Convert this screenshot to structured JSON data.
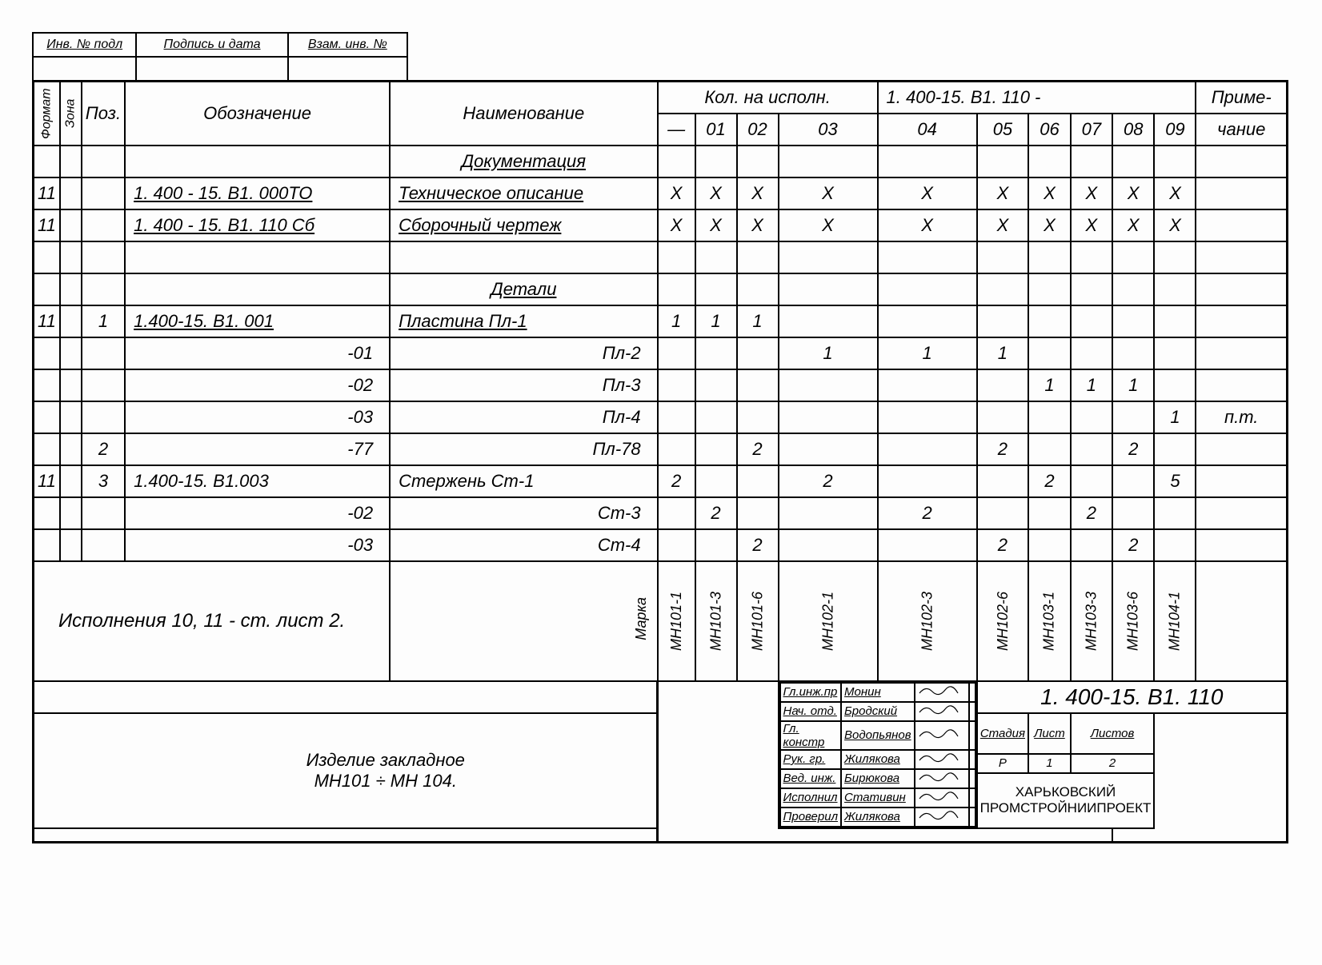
{
  "strip": {
    "c1": "Инв. № подл",
    "c2": "Подпись и дата",
    "c3": "Взам. инв. №"
  },
  "head": {
    "format": "Формат",
    "zona": "Зона",
    "poz": "Поз.",
    "obozn": "Обозначение",
    "naim": "Наименование",
    "kol_na_ispoln": "Кол. на исполн.",
    "series": "1. 400-15. В1. 110 -",
    "prime": "Приме-",
    "chanie": "чание",
    "cols": [
      "—",
      "01",
      "02",
      "03",
      "04",
      "05",
      "06",
      "07",
      "08",
      "09"
    ]
  },
  "sections": {
    "doc": "Документация",
    "det": "Детали"
  },
  "rows": [
    {
      "f": "11",
      "z": "",
      "p": "",
      "ob": "1. 400 - 15. В1. 000ТО",
      "nm": "Техническое описание",
      "q": [
        "Х",
        "Х",
        "Х",
        "Х",
        "Х",
        "Х",
        "Х",
        "Х",
        "Х",
        "Х"
      ],
      "pr": "",
      "u": true
    },
    {
      "f": "11",
      "z": "",
      "p": "",
      "ob": "1. 400 - 15. В1. 110 Сб",
      "nm": "Сборочный чертеж",
      "q": [
        "Х",
        "Х",
        "Х",
        "Х",
        "Х",
        "Х",
        "Х",
        "Х",
        "Х",
        "Х"
      ],
      "pr": "",
      "u": true
    },
    {
      "f": "11",
      "z": "",
      "p": "1",
      "ob": "1.400-15. В1. 001",
      "nm": "Пластина     Пл-1",
      "q": [
        "1",
        "1",
        "1",
        "",
        "",
        "",
        "",
        "",
        "",
        ""
      ],
      "pr": "",
      "u": true
    },
    {
      "f": "",
      "z": "",
      "p": "",
      "ob": "-01",
      "nm": "Пл-2",
      "q": [
        "",
        "",
        "",
        "1",
        "1",
        "1",
        "",
        "",
        "",
        ""
      ],
      "pr": "",
      "r": true
    },
    {
      "f": "",
      "z": "",
      "p": "",
      "ob": "-02",
      "nm": "Пл-3",
      "q": [
        "",
        "",
        "",
        "",
        "",
        "",
        "1",
        "1",
        "1",
        ""
      ],
      "pr": "",
      "r": true
    },
    {
      "f": "",
      "z": "",
      "p": "",
      "ob": "-03",
      "nm": "Пл-4",
      "q": [
        "",
        "",
        "",
        "",
        "",
        "",
        "",
        "",
        "",
        "1"
      ],
      "pr": "п.т.",
      "r": true
    },
    {
      "f": "",
      "z": "",
      "p": "2",
      "ob": "-77",
      "nm": "Пл-78",
      "q": [
        "",
        "",
        "2",
        "",
        "",
        "2",
        "",
        "",
        "2",
        ""
      ],
      "pr": "",
      "r": true
    },
    {
      "f": "11",
      "z": "",
      "p": "3",
      "ob": "1.400-15. В1.003",
      "nm": "Стержень     Ст-1",
      "q": [
        "2",
        "",
        "",
        "2",
        "",
        "",
        "2",
        "",
        "",
        "5"
      ],
      "pr": ""
    },
    {
      "f": "",
      "z": "",
      "p": "",
      "ob": "-02",
      "nm": "Ст-3",
      "q": [
        "",
        "2",
        "",
        "",
        "2",
        "",
        "",
        "2",
        "",
        ""
      ],
      "pr": "",
      "r": true
    },
    {
      "f": "",
      "z": "",
      "p": "",
      "ob": "-03",
      "nm": "Ст-4",
      "q": [
        "",
        "",
        "2",
        "",
        "",
        "2",
        "",
        "",
        "2",
        ""
      ],
      "pr": "",
      "r": true
    }
  ],
  "note": "Исполнения 10, 11 - ст. лист 2.",
  "marka_label": "Марка",
  "marka": [
    "МН101-1",
    "МН101-3",
    "МН101-6",
    "МН102-1",
    "МН102-3",
    "МН102-6",
    "МН103-1",
    "МН103-3",
    "МН103-6",
    "МН104-1"
  ],
  "sigs": [
    {
      "r": "Гл.инж.пр",
      "n": "Монин"
    },
    {
      "r": "Нач. отд.",
      "n": "Бродский"
    },
    {
      "r": "Гл. констр",
      "n": "Водопьянов"
    },
    {
      "r": "Рук. гр.",
      "n": "Жилякова"
    },
    {
      "r": "Вед. инж.",
      "n": "Бирюкова"
    },
    {
      "r": "Исполнил",
      "n": "Стативин"
    },
    {
      "r": "Проверил",
      "n": "Жилякова"
    }
  ],
  "stamp": {
    "code": "1. 400-15. В1. 110",
    "title1": "Изделие закладное",
    "title2": "МН101 ÷ МН 104.",
    "stadia_h": "Стадия",
    "list_h": "Лист",
    "listov_h": "Листов",
    "stadia": "Р",
    "list": "1",
    "listov": "2",
    "org1": "ХАРЬКОВСКИЙ",
    "org2": "ПРОМСТРОЙНИИПРОЕКТ"
  }
}
